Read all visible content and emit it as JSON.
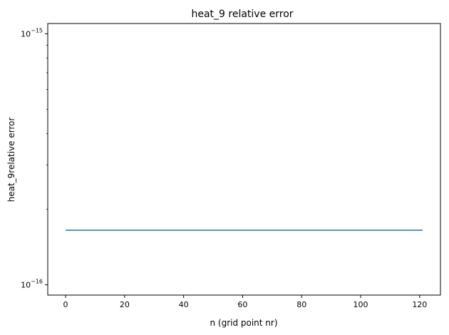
{
  "chart_data": {
    "type": "line",
    "title": "heat_9 relative error",
    "xlabel": "n (grid point nr)",
    "ylabel": "heat_9relative error",
    "xlim": [
      -6.05,
      127.05
    ],
    "ylim": [
      9.1e-17,
      1.098e-15
    ],
    "yscale": "log",
    "grid": false,
    "legend": "none",
    "x_ticks": [
      0,
      20,
      40,
      60,
      80,
      100,
      120
    ],
    "y_major_ticks": [
      {
        "value": 1e-16,
        "base": "10",
        "exp": "−16"
      },
      {
        "value": 1e-15,
        "base": "10",
        "exp": "−15"
      }
    ],
    "y_minor_ticks": [
      2e-16,
      3e-16,
      4e-16,
      5e-16,
      6e-16,
      7e-16,
      8e-16,
      9e-16
    ],
    "series": [
      {
        "color": "#1f77b4",
        "x": [
          0,
          121
        ],
        "y": [
          1.65e-16,
          1.65e-16
        ]
      }
    ]
  }
}
